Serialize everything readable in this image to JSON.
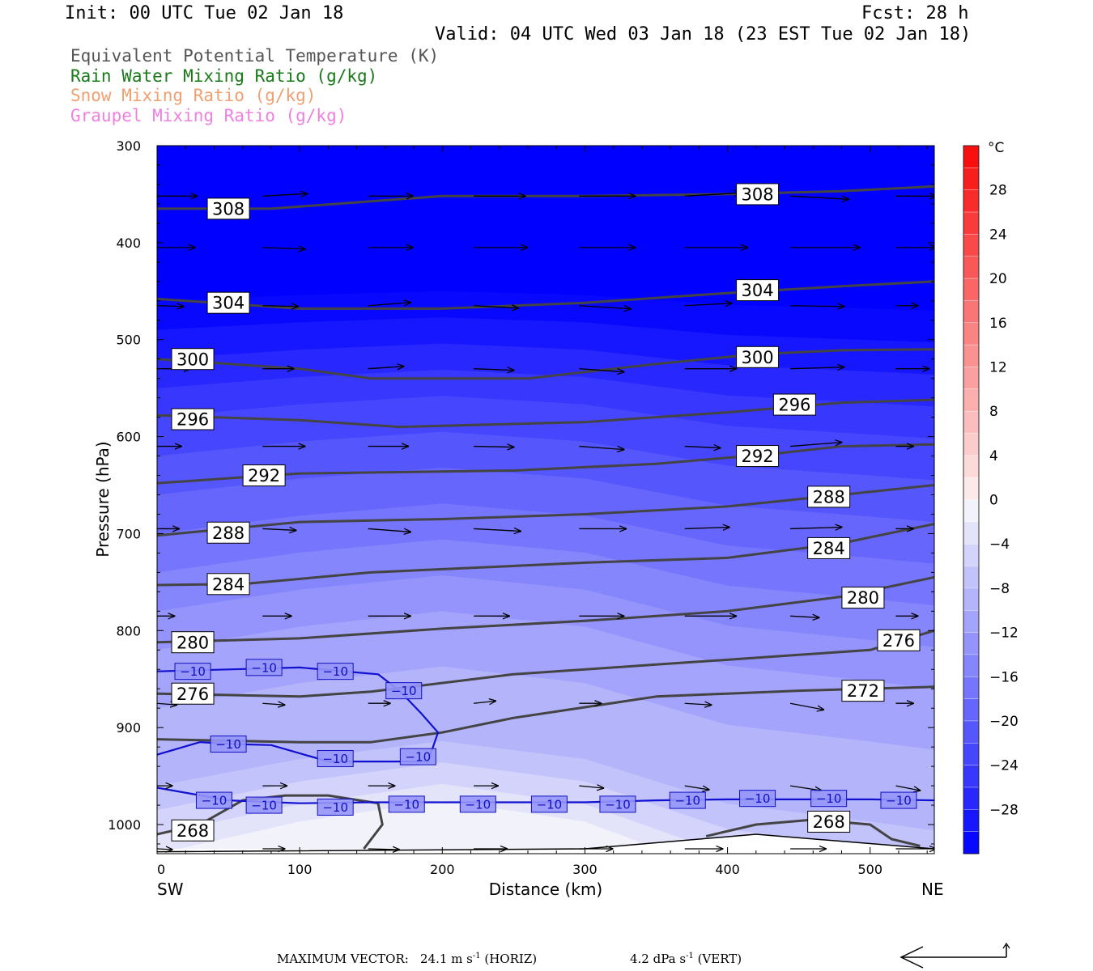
{
  "header": {
    "init": "Init: 00 UTC Tue 02 Jan 18",
    "fcst": "Fcst:   28 h",
    "valid": "Valid: 04 UTC Wed 03 Jan 18 (23 EST Tue 02 Jan 18)"
  },
  "legend": [
    {
      "label": "Equivalent Potential Temperature (K)",
      "color": "#555555"
    },
    {
      "label": "Rain Water Mixing Ratio (g/kg)",
      "color": "#1a7a1a"
    },
    {
      "label": "Snow Mixing Ratio (g/kg)",
      "color": "#f0a070"
    },
    {
      "label": "Graupel Mixing Ratio (g/kg)",
      "color": "#f080e0"
    }
  ],
  "chart_data": {
    "type": "heatmap",
    "xlabel": "Distance (km)",
    "ylabel": "Pressure (hPa)",
    "xlim": [
      0,
      545
    ],
    "ylim": [
      1030,
      300
    ],
    "xticks": [
      0,
      100,
      200,
      300,
      400,
      500
    ],
    "yticks": [
      300,
      400,
      500,
      600,
      700,
      800,
      900,
      1000
    ],
    "left_end_label": "SW",
    "right_end_label": "NE",
    "theta_e_contours": [
      {
        "value": 308,
        "label": "308",
        "x": [
          0,
          80,
          200,
          300,
          400,
          480,
          545
        ],
        "p": [
          365,
          365,
          352,
          352,
          350,
          347,
          342
        ],
        "labels_at": [
          {
            "x": 50,
            "p": 365
          },
          {
            "x": 421,
            "p": 350
          }
        ]
      },
      {
        "value": 304,
        "label": "304",
        "x": [
          0,
          100,
          200,
          300,
          400,
          480,
          545
        ],
        "p": [
          458,
          468,
          468,
          462,
          452,
          445,
          440
        ],
        "labels_at": [
          {
            "x": 50,
            "p": 462
          },
          {
            "x": 421,
            "p": 449
          }
        ]
      },
      {
        "value": 300,
        "label": "300",
        "x": [
          0,
          100,
          150,
          260,
          350,
          420,
          480,
          545
        ],
        "p": [
          520,
          530,
          540,
          540,
          525,
          515,
          511,
          510
        ],
        "labels_at": [
          {
            "x": 25,
            "p": 520
          },
          {
            "x": 421,
            "p": 518
          }
        ]
      },
      {
        "value": 296,
        "label": "296",
        "x": [
          0,
          100,
          170,
          300,
          400,
          480,
          545
        ],
        "p": [
          578,
          583,
          590,
          585,
          575,
          565,
          562
        ],
        "labels_at": [
          {
            "x": 25,
            "p": 582
          },
          {
            "x": 447,
            "p": 567
          }
        ]
      },
      {
        "value": 292,
        "label": "292",
        "x": [
          0,
          100,
          250,
          350,
          430,
          480,
          545
        ],
        "p": [
          648,
          638,
          635,
          628,
          618,
          610,
          608
        ],
        "labels_at": [
          {
            "x": 75,
            "p": 640
          },
          {
            "x": 421,
            "p": 620
          }
        ]
      },
      {
        "value": 288,
        "label": "288",
        "x": [
          0,
          100,
          200,
          300,
          400,
          480,
          545
        ],
        "p": [
          702,
          688,
          685,
          680,
          672,
          660,
          650
        ],
        "labels_at": [
          {
            "x": 50,
            "p": 699
          },
          {
            "x": 471,
            "p": 662
          }
        ]
      },
      {
        "value": 284,
        "label": "284",
        "x": [
          0,
          60,
          150,
          300,
          400,
          480,
          545
        ],
        "p": [
          753,
          752,
          740,
          730,
          725,
          710,
          690
        ],
        "labels_at": [
          {
            "x": 50,
            "p": 752
          },
          {
            "x": 471,
            "p": 715
          }
        ]
      },
      {
        "value": 280,
        "label": "280",
        "x": [
          0,
          100,
          200,
          300,
          400,
          480,
          545
        ],
        "p": [
          812,
          808,
          798,
          790,
          780,
          765,
          745
        ],
        "labels_at": [
          {
            "x": 25,
            "p": 812
          },
          {
            "x": 495,
            "p": 766
          }
        ]
      },
      {
        "value": 276,
        "label": "276",
        "x": [
          0,
          100,
          150,
          250,
          350,
          450,
          500,
          545
        ],
        "p": [
          865,
          868,
          863,
          845,
          835,
          825,
          820,
          800
        ],
        "labels_at": [
          {
            "x": 25,
            "p": 865
          },
          {
            "x": 520,
            "p": 810
          }
        ]
      },
      {
        "value": 272,
        "label": "272",
        "x": [
          0,
          100,
          150,
          200,
          250,
          350,
          450,
          545
        ],
        "p": [
          912,
          915,
          915,
          905,
          890,
          868,
          862,
          858
        ],
        "labels_at": [
          {
            "x": 495,
            "p": 862
          }
        ]
      },
      {
        "value": 268,
        "label": "268",
        "x": [
          0,
          30,
          60,
          90,
          120,
          155,
          158,
          145
        ],
        "p": [
          1010,
          1000,
          975,
          970,
          970,
          978,
          1000,
          1025
        ],
        "labels_at": [
          {
            "x": 25,
            "p": 1006
          }
        ]
      },
      {
        "value": 268,
        "label": "268",
        "x": [
          385,
          420,
          460,
          500,
          515,
          535
        ],
        "p": [
          1012,
          1000,
          995,
          1000,
          1015,
          1022
        ],
        "labels_at": [
          {
            "x": 471,
            "p": 997
          }
        ]
      }
    ],
    "temperature_contour": [
      {
        "value": -10,
        "label": "−10",
        "x": [
          0,
          50,
          100,
          155,
          170,
          185,
          197,
          190,
          150,
          120,
          80,
          55,
          30,
          0
        ],
        "p": [
          842,
          840,
          838,
          845,
          862,
          885,
          905,
          935,
          935,
          935,
          918,
          917,
          915,
          928
        ],
        "labels_at": [
          {
            "x": 25,
            "p": 842
          },
          {
            "x": 75,
            "p": 838
          },
          {
            "x": 125,
            "p": 842
          },
          {
            "x": 173,
            "p": 862
          },
          {
            "x": 50,
            "p": 917
          },
          {
            "x": 125,
            "p": 932
          },
          {
            "x": 183,
            "p": 930
          }
        ]
      },
      {
        "value": -10,
        "label": "−10",
        "x": [
          0,
          50,
          100,
          150,
          200,
          250,
          300,
          350,
          400,
          450,
          500,
          545
        ],
        "p": [
          962,
          975,
          978,
          977,
          977,
          977,
          977,
          975,
          974,
          974,
          974,
          975
        ],
        "labels_at": [
          {
            "x": 40,
            "p": 975
          },
          {
            "x": 75,
            "p": 980
          },
          {
            "x": 125,
            "p": 982
          },
          {
            "x": 175,
            "p": 979
          },
          {
            "x": 225,
            "p": 979
          },
          {
            "x": 275,
            "p": 979
          },
          {
            "x": 323,
            "p": 979
          },
          {
            "x": 372,
            "p": 975
          },
          {
            "x": 421,
            "p": 973
          },
          {
            "x": 471,
            "p": 973
          },
          {
            "x": 520,
            "p": 975
          }
        ]
      }
    ],
    "wind_vectors": {
      "x": [
        0,
        74,
        148,
        222,
        296,
        370,
        444,
        518
      ],
      "p": [
        352,
        405,
        465,
        530,
        610,
        695,
        785,
        875,
        960,
        1025
      ],
      "rows": [
        [
          [
            36,
            0
          ],
          [
            40,
            -3
          ],
          [
            40,
            0
          ],
          [
            46,
            0
          ],
          [
            50,
            0
          ],
          [
            50,
            -4
          ],
          [
            52,
            4
          ],
          [
            36,
            0
          ]
        ],
        [
          [
            34,
            0
          ],
          [
            38,
            2
          ],
          [
            40,
            0
          ],
          [
            48,
            0
          ],
          [
            50,
            0
          ],
          [
            56,
            0
          ],
          [
            62,
            0
          ],
          [
            36,
            0
          ]
        ],
        [
          [
            24,
            1
          ],
          [
            32,
            1
          ],
          [
            38,
            -4
          ],
          [
            40,
            3
          ],
          [
            46,
            4
          ],
          [
            42,
            -3
          ],
          [
            48,
            1
          ],
          [
            20,
            0
          ]
        ],
        [
          [
            30,
            0
          ],
          [
            28,
            0
          ],
          [
            32,
            -3
          ],
          [
            36,
            2
          ],
          [
            40,
            4
          ],
          [
            46,
            0
          ],
          [
            48,
            -2
          ],
          [
            30,
            0
          ]
        ],
        [
          [
            22,
            0
          ],
          [
            38,
            0
          ],
          [
            36,
            0
          ],
          [
            36,
            1
          ],
          [
            40,
            4
          ],
          [
            32,
            2
          ],
          [
            46,
            -5
          ],
          [
            16,
            0
          ]
        ],
        [
          [
            20,
            0
          ],
          [
            30,
            2
          ],
          [
            38,
            4
          ],
          [
            42,
            3
          ],
          [
            42,
            0
          ],
          [
            40,
            -2
          ],
          [
            46,
            -2
          ],
          [
            16,
            0
          ]
        ],
        [
          [
            16,
            0
          ],
          [
            26,
            0
          ],
          [
            38,
            0
          ],
          [
            32,
            0
          ],
          [
            40,
            0
          ],
          [
            46,
            0
          ],
          [
            26,
            2
          ],
          [
            20,
            0
          ]
        ],
        [
          [
            18,
            2
          ],
          [
            20,
            2
          ],
          [
            20,
            0
          ],
          [
            20,
            -3
          ],
          [
            20,
            0
          ],
          [
            24,
            2
          ],
          [
            30,
            8
          ],
          [
            16,
            0
          ]
        ],
        [
          [
            14,
            0
          ],
          [
            22,
            0
          ],
          [
            24,
            0
          ],
          [
            22,
            0
          ],
          [
            22,
            3
          ],
          [
            22,
            5
          ],
          [
            28,
            6
          ],
          [
            22,
            6
          ]
        ],
        [
          [
            14,
            1
          ],
          [
            20,
            0
          ],
          [
            28,
            1
          ],
          [
            30,
            0
          ],
          [
            30,
            0
          ],
          [
            34,
            0
          ],
          [
            32,
            0
          ],
          [
            36,
            0
          ]
        ]
      ]
    },
    "colorbar": {
      "unit": "°C",
      "tick_labels": [
        "28",
        "24",
        "20",
        "16",
        "12",
        "8",
        "4",
        "0",
        "−4",
        "−8",
        "−12",
        "−16",
        "−20",
        "−24",
        "−28"
      ],
      "tick_values": [
        28,
        24,
        20,
        16,
        12,
        8,
        4,
        0,
        -4,
        -8,
        -12,
        -16,
        -20,
        -24,
        -28
      ],
      "range": [
        -32,
        32
      ],
      "step": 2
    },
    "temperature_field_bands": [
      -32,
      -30,
      -28,
      -26,
      -24,
      -22,
      -20,
      -18,
      -16,
      -14,
      -12,
      -10,
      -8,
      -6,
      -4,
      -2,
      0
    ]
  },
  "footer": {
    "max_vector_label": "MAXIMUM VECTOR:",
    "horiz_value": "24.1 m s",
    "horiz_tail": " (HORIZ)",
    "vert_value": "4.2 dPa s",
    "vert_tail": " (VERT)",
    "sup": "-1"
  }
}
